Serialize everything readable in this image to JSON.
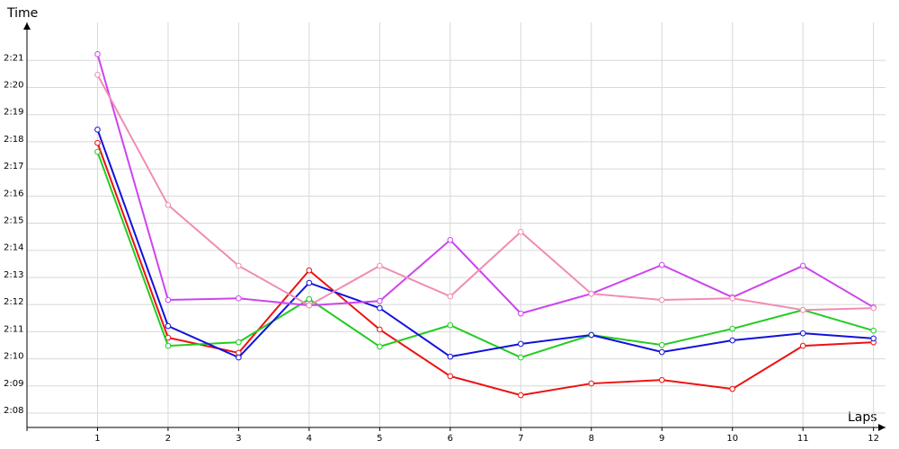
{
  "chart_data": {
    "type": "line",
    "x_label": "Laps",
    "y_label": "Time",
    "x": [
      1,
      2,
      3,
      4,
      5,
      6,
      7,
      8,
      9,
      10,
      11,
      12
    ],
    "xlim": [
      0,
      12.17
    ],
    "xticks": [
      1,
      2,
      3,
      4,
      5,
      6,
      7,
      8,
      9,
      10,
      11,
      12
    ],
    "ylim": [
      127.47,
      142.4
    ],
    "yticks": [
      {
        "value": 128,
        "label": "2:08"
      },
      {
        "value": 129,
        "label": "2:09"
      },
      {
        "value": 130,
        "label": "2:10"
      },
      {
        "value": 131,
        "label": "2:11"
      },
      {
        "value": 132,
        "label": "2:12"
      },
      {
        "value": 133,
        "label": "2:13"
      },
      {
        "value": 134,
        "label": "2:14"
      },
      {
        "value": 135,
        "label": "2:15"
      },
      {
        "value": 136,
        "label": "2:16"
      },
      {
        "value": 137,
        "label": "2:17"
      },
      {
        "value": 138,
        "label": "2:18"
      },
      {
        "value": 139,
        "label": "2:19"
      },
      {
        "value": 140,
        "label": "2:20"
      },
      {
        "value": 141,
        "label": "2:21"
      }
    ],
    "grid": true,
    "series": [
      {
        "color": "#ee1111",
        "values": [
          137.96,
          130.78,
          130.22,
          133.26,
          131.08,
          129.36,
          128.66,
          129.09,
          129.22,
          128.89,
          130.48,
          130.61
        ]
      },
      {
        "color": "#22cc22",
        "values": [
          137.63,
          130.48,
          130.61,
          132.2,
          130.45,
          131.24,
          130.05,
          130.88,
          130.51,
          131.11,
          131.8,
          131.04
        ]
      },
      {
        "color": "#1111dd",
        "values": [
          138.45,
          131.21,
          130.05,
          132.8,
          131.87,
          130.08,
          130.55,
          130.88,
          130.25,
          130.68,
          130.94,
          130.75
        ]
      },
      {
        "color": "#cc44ee",
        "values": [
          141.23,
          132.17,
          132.23,
          131.97,
          132.13,
          134.38,
          131.67,
          132.4,
          133.46,
          132.27,
          133.43,
          131.9
        ]
      },
      {
        "color": "#f08cb4",
        "values": [
          140.47,
          135.67,
          133.43,
          131.97,
          133.43,
          132.3,
          134.68,
          132.4,
          132.17,
          132.23,
          131.8,
          131.87
        ]
      }
    ]
  }
}
